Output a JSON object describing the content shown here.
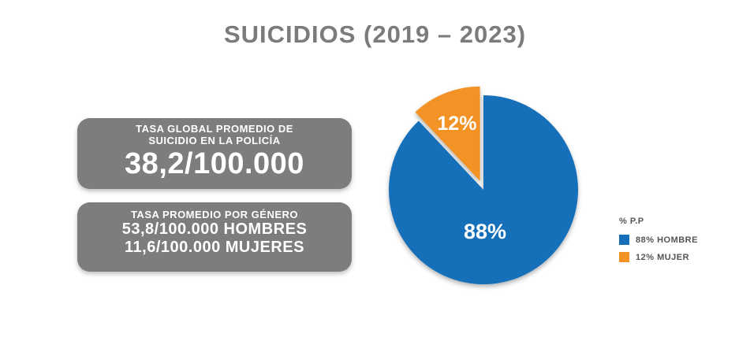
{
  "title": "SUICIDIOS (2019 – 2023)",
  "card_global": {
    "heading": "TASA GLOBAL PROMEDIO DE\nSUICIDIO EN LA POLICÍA",
    "value": "38,2/100.000"
  },
  "card_gender": {
    "heading": "TASA PROMEDIO POR GÉNERO",
    "men": "53,8/100.000  HOMBRES",
    "women": "11,6/100.000  MUJERES"
  },
  "chart_data": {
    "type": "pie",
    "legend_title": "% P.P",
    "legend_placement": "right",
    "slices": [
      {
        "label": "88% HOMBRE",
        "value": 88,
        "data_label": "88%",
        "color": "#1570b9",
        "exploded": false
      },
      {
        "label": "12% MUJER",
        "value": 12,
        "data_label": "12%",
        "color": "#f39325",
        "exploded": true
      }
    ]
  }
}
